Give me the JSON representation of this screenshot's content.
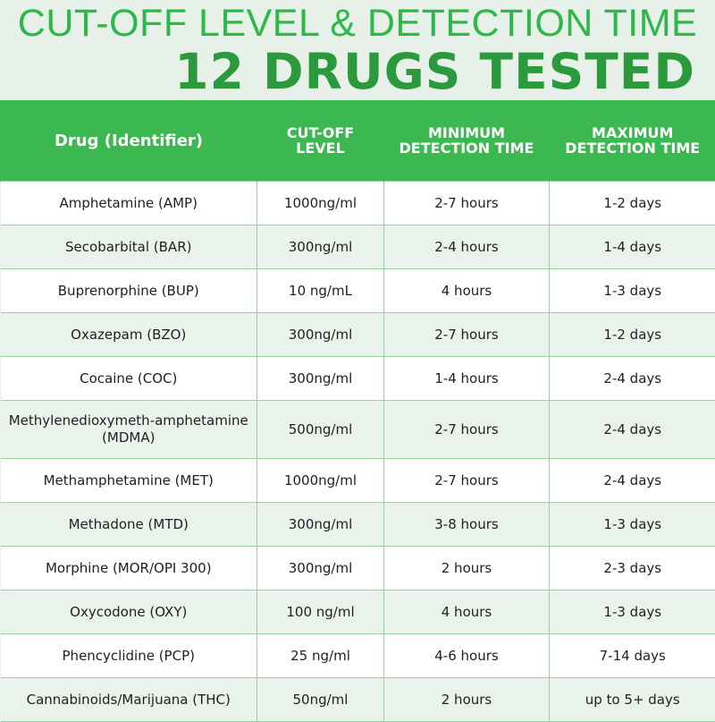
{
  "title": {
    "line1": "CUT-OFF LEVEL & DETECTION TIME",
    "line2": "12 DRUGS TESTED"
  },
  "colors": {
    "brand_green": "#3bb84f",
    "title_green": "#2db84a",
    "background": "#e8f1e9"
  },
  "table": {
    "headers": {
      "drug": "Drug (Identifier)",
      "cutoff": "CUT-OFF LEVEL",
      "min": "MINIMUM DETECTION TIME",
      "max": "MAXIMUM DETECTION TIME"
    },
    "rows": [
      {
        "drug": "Amphetamine (AMP)",
        "cutoff": "1000ng/ml",
        "min": "2-7 hours",
        "max": "1-2 days"
      },
      {
        "drug": "Secobarbital (BAR)",
        "cutoff": "300ng/ml",
        "min": "2-4 hours",
        "max": "1-4 days"
      },
      {
        "drug": "Buprenorphine (BUP)",
        "cutoff": "10 ng/mL",
        "min": "4 hours",
        "max": "1-3 days"
      },
      {
        "drug": "Oxazepam (BZO)",
        "cutoff": "300ng/ml",
        "min": "2-7 hours",
        "max": "1-2 days"
      },
      {
        "drug": "Cocaine (COC)",
        "cutoff": "300ng/ml",
        "min": "1-4 hours",
        "max": "2-4 days"
      },
      {
        "drug": "Methylenedioxymeth-amphetamine (MDMA)",
        "cutoff": "500ng/ml",
        "min": "2-7 hours",
        "max": "2-4 days"
      },
      {
        "drug": "Methamphetamine (MET)",
        "cutoff": "1000ng/ml",
        "min": "2-7 hours",
        "max": "2-4 days"
      },
      {
        "drug": "Methadone (MTD)",
        "cutoff": "300ng/ml",
        "min": "3-8 hours",
        "max": "1-3 days"
      },
      {
        "drug": "Morphine (MOR/OPI 300)",
        "cutoff": "300ng/ml",
        "min": "2 hours",
        "max": "2-3 days"
      },
      {
        "drug": "Oxycodone (OXY)",
        "cutoff": "100 ng/ml",
        "min": "4 hours",
        "max": "1-3 days"
      },
      {
        "drug": "Phencyclidine (PCP)",
        "cutoff": "25 ng/ml",
        "min": "4-6 hours",
        "max": "7-14 days"
      },
      {
        "drug": "Cannabinoids/Marijuana (THC)",
        "cutoff": "50ng/ml",
        "min": "2 hours",
        "max": "up to 5+ days"
      }
    ]
  }
}
